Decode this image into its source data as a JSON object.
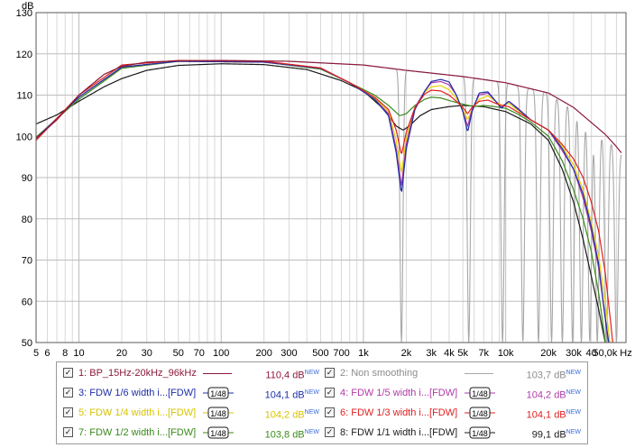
{
  "chart_data": {
    "type": "line",
    "title": "",
    "ylabel": "dB",
    "xlabel": "",
    "x_scale": "log",
    "xlim": [
      5,
      70000
    ],
    "ylim": [
      50,
      130
    ],
    "y_ticks": [
      50,
      60,
      70,
      80,
      90,
      100,
      110,
      120,
      130
    ],
    "x_ticks": [
      {
        "v": 5,
        "l": "5"
      },
      {
        "v": 6,
        "l": "6"
      },
      {
        "v": 8,
        "l": "8"
      },
      {
        "v": 10,
        "l": "10"
      },
      {
        "v": 20,
        "l": "20"
      },
      {
        "v": 30,
        "l": "30"
      },
      {
        "v": 50,
        "l": "50"
      },
      {
        "v": 70,
        "l": "70"
      },
      {
        "v": 100,
        "l": "100"
      },
      {
        "v": 200,
        "l": "200"
      },
      {
        "v": 300,
        "l": "300"
      },
      {
        "v": 500,
        "l": "500"
      },
      {
        "v": 700,
        "l": "700"
      },
      {
        "v": 1000,
        "l": "1k"
      },
      {
        "v": 2000,
        "l": "2k"
      },
      {
        "v": 3000,
        "l": "3k"
      },
      {
        "v": 4000,
        "l": "4k"
      },
      {
        "v": 5000,
        "l": "5k"
      },
      {
        "v": 7000,
        "l": "7k"
      },
      {
        "v": 10000,
        "l": "10k"
      },
      {
        "v": 20000,
        "l": "20k"
      },
      {
        "v": 30000,
        "l": "30k"
      },
      {
        "v": 40000,
        "l": "40"
      },
      {
        "v": 50000,
        "l": "50,0k"
      },
      {
        "v": 70000,
        "l": "Hz"
      }
    ],
    "grid": true,
    "legend_position": "bottom",
    "series": [
      {
        "id": 2,
        "name": "Non smoothing",
        "color": "#a8a8a8",
        "mode": "comb",
        "env": "s1",
        "nulls": [
          [
            1850,
            50
          ],
          [
            5500,
            50
          ],
          [
            9500,
            50
          ],
          [
            13200,
            50
          ],
          [
            17000,
            50
          ],
          [
            21000,
            50
          ],
          [
            25000,
            50
          ],
          [
            29500,
            50
          ],
          [
            34000,
            50
          ],
          [
            39000,
            50
          ],
          [
            44000,
            50
          ],
          [
            51000,
            50
          ],
          [
            60000,
            50
          ]
        ]
      },
      {
        "id": 1,
        "name": "BP_15Hz-20kHz_96kHz",
        "color": "#8b1a3b",
        "points": [
          [
            5,
            99.5
          ],
          [
            7,
            104
          ],
          [
            10,
            110
          ],
          [
            15,
            115
          ],
          [
            20,
            117
          ],
          [
            30,
            118
          ],
          [
            50,
            118.3
          ],
          [
            100,
            118.4
          ],
          [
            300,
            118.2
          ],
          [
            1000,
            117.3
          ],
          [
            2000,
            116
          ],
          [
            5000,
            114.5
          ],
          [
            10000,
            113
          ],
          [
            20000,
            110.5
          ],
          [
            30000,
            107
          ],
          [
            50000,
            100.5
          ],
          [
            60000,
            97.5
          ],
          [
            65000,
            96
          ]
        ]
      },
      {
        "id": 3,
        "name": "FDW 1/6 width i...[FDW]",
        "color": "#1e2ea8",
        "points": [
          [
            5,
            99.5
          ],
          [
            10,
            109.5
          ],
          [
            20,
            116.8
          ],
          [
            50,
            118.2
          ],
          [
            200,
            118
          ],
          [
            500,
            116.5
          ],
          [
            800,
            113
          ],
          [
            1200,
            109
          ],
          [
            1500,
            105
          ],
          [
            1700,
            96
          ],
          [
            1850,
            86
          ],
          [
            2000,
            97
          ],
          [
            2300,
            106.5
          ],
          [
            2700,
            111
          ],
          [
            3000,
            113.3
          ],
          [
            3500,
            113.8
          ],
          [
            4000,
            113.2
          ],
          [
            4500,
            110
          ],
          [
            5000,
            106
          ],
          [
            5400,
            101
          ],
          [
            5800,
            106
          ],
          [
            6500,
            110.5
          ],
          [
            7500,
            110.8
          ],
          [
            8500,
            108.5
          ],
          [
            9300,
            106.8
          ],
          [
            10500,
            108.5
          ],
          [
            12000,
            106.8
          ],
          [
            15000,
            104
          ],
          [
            20000,
            101.5
          ],
          [
            25000,
            97
          ],
          [
            30000,
            92
          ],
          [
            35000,
            86
          ],
          [
            40000,
            78
          ],
          [
            45000,
            69
          ],
          [
            50000,
            56
          ],
          [
            53000,
            50
          ]
        ]
      },
      {
        "id": 4,
        "name": "FDW 1/5 width i...[FDW]",
        "color": "#b03aa8",
        "points": [
          [
            5,
            99.5
          ],
          [
            10,
            109.5
          ],
          [
            20,
            116.8
          ],
          [
            50,
            118.2
          ],
          [
            200,
            118
          ],
          [
            500,
            116.5
          ],
          [
            800,
            113
          ],
          [
            1200,
            109
          ],
          [
            1500,
            105.5
          ],
          [
            1700,
            97
          ],
          [
            1850,
            88
          ],
          [
            2000,
            98
          ],
          [
            2300,
            107
          ],
          [
            2700,
            111
          ],
          [
            3000,
            113
          ],
          [
            3500,
            113.3
          ],
          [
            4000,
            112.5
          ],
          [
            4500,
            110
          ],
          [
            5000,
            106
          ],
          [
            5400,
            102.5
          ],
          [
            5800,
            106.5
          ],
          [
            6500,
            110
          ],
          [
            7500,
            110.5
          ],
          [
            8500,
            108.5
          ],
          [
            9300,
            107
          ],
          [
            10500,
            108.5
          ],
          [
            12000,
            107
          ],
          [
            15000,
            104
          ],
          [
            20000,
            101.5
          ],
          [
            25000,
            96.5
          ],
          [
            30000,
            92
          ],
          [
            35000,
            85
          ],
          [
            40000,
            77
          ],
          [
            45000,
            68
          ],
          [
            50000,
            56
          ],
          [
            52500,
            50
          ]
        ]
      },
      {
        "id": 5,
        "name": "FDW 1/4 width i...[FDW]",
        "color": "#e4d000",
        "points": [
          [
            5,
            99.5
          ],
          [
            10,
            109.5
          ],
          [
            20,
            116.8
          ],
          [
            50,
            118.2
          ],
          [
            200,
            118
          ],
          [
            500,
            116.5
          ],
          [
            800,
            113
          ],
          [
            1200,
            109.2
          ],
          [
            1500,
            106
          ],
          [
            1700,
            99
          ],
          [
            1850,
            91
          ],
          [
            2000,
            99.5
          ],
          [
            2300,
            107
          ],
          [
            2700,
            110.8
          ],
          [
            3000,
            112
          ],
          [
            3500,
            112.3
          ],
          [
            4000,
            111.3
          ],
          [
            4500,
            109.2
          ],
          [
            5000,
            106.5
          ],
          [
            5400,
            104
          ],
          [
            5800,
            106.5
          ],
          [
            6500,
            109
          ],
          [
            7500,
            109.8
          ],
          [
            8500,
            108.5
          ],
          [
            9300,
            107.5
          ],
          [
            10500,
            108
          ],
          [
            12000,
            106.5
          ],
          [
            15000,
            104
          ],
          [
            20000,
            101.5
          ],
          [
            25000,
            97.5
          ],
          [
            30000,
            93
          ],
          [
            35000,
            87
          ],
          [
            40000,
            79
          ],
          [
            45000,
            71
          ],
          [
            50000,
            60
          ],
          [
            54000,
            50
          ]
        ]
      },
      {
        "id": 6,
        "name": "FDW 1/3 width i...[FDW]",
        "color": "#e01e1e",
        "points": [
          [
            5,
            99
          ],
          [
            10,
            110
          ],
          [
            20,
            117.3
          ],
          [
            50,
            118.4
          ],
          [
            200,
            118.2
          ],
          [
            500,
            116.6
          ],
          [
            800,
            113
          ],
          [
            1200,
            109.5
          ],
          [
            1500,
            106.5
          ],
          [
            1700,
            101.5
          ],
          [
            1850,
            95.5
          ],
          [
            2000,
            101
          ],
          [
            2300,
            107
          ],
          [
            2700,
            110.3
          ],
          [
            3000,
            111.2
          ],
          [
            3500,
            111
          ],
          [
            4000,
            110
          ],
          [
            4500,
            108.5
          ],
          [
            5000,
            107
          ],
          [
            5400,
            105.5
          ],
          [
            5800,
            107
          ],
          [
            6500,
            108.5
          ],
          [
            7500,
            108.8
          ],
          [
            8500,
            108
          ],
          [
            9300,
            107.5
          ],
          [
            10500,
            107.2
          ],
          [
            12000,
            106
          ],
          [
            15000,
            104
          ],
          [
            20000,
            101.5
          ],
          [
            25000,
            98
          ],
          [
            30000,
            94.5
          ],
          [
            35000,
            90
          ],
          [
            40000,
            84
          ],
          [
            45000,
            77
          ],
          [
            50000,
            67
          ],
          [
            55000,
            54
          ],
          [
            56500,
            50
          ]
        ]
      },
      {
        "id": 7,
        "name": "FDW 1/2 width i...[FDW]",
        "color": "#3a8a1a",
        "points": [
          [
            5,
            99.8
          ],
          [
            10,
            109
          ],
          [
            20,
            116.5
          ],
          [
            50,
            118.2
          ],
          [
            200,
            118
          ],
          [
            500,
            116.3
          ],
          [
            800,
            113
          ],
          [
            1200,
            110
          ],
          [
            1500,
            107.5
          ],
          [
            1800,
            105
          ],
          [
            2000,
            105.5
          ],
          [
            2300,
            107.5
          ],
          [
            2700,
            109
          ],
          [
            3000,
            109.5
          ],
          [
            3500,
            109.3
          ],
          [
            4000,
            108.7
          ],
          [
            5000,
            107.8
          ],
          [
            6000,
            107.2
          ],
          [
            7000,
            107.5
          ],
          [
            8000,
            107.3
          ],
          [
            10000,
            106.8
          ],
          [
            12000,
            105.5
          ],
          [
            15000,
            103.5
          ],
          [
            20000,
            100
          ],
          [
            25000,
            94
          ],
          [
            30000,
            87
          ],
          [
            35000,
            80
          ],
          [
            40000,
            72
          ],
          [
            45000,
            62
          ],
          [
            48000,
            55
          ],
          [
            50000,
            50
          ]
        ]
      },
      {
        "id": 8,
        "name": "FDW 1/1 width i...[FDW]",
        "color": "#1a1a1a",
        "points": [
          [
            5,
            103
          ],
          [
            7,
            105.2
          ],
          [
            10,
            108.5
          ],
          [
            15,
            112
          ],
          [
            20,
            114
          ],
          [
            30,
            116
          ],
          [
            50,
            117.2
          ],
          [
            100,
            117.6
          ],
          [
            200,
            117.4
          ],
          [
            400,
            116.2
          ],
          [
            700,
            113.5
          ],
          [
            1000,
            111
          ],
          [
            1400,
            106.5
          ],
          [
            1700,
            102.5
          ],
          [
            1900,
            101.5
          ],
          [
            2100,
            102.5
          ],
          [
            2500,
            105
          ],
          [
            3000,
            106.5
          ],
          [
            4000,
            107.2
          ],
          [
            5000,
            107.5
          ],
          [
            7000,
            107.2
          ],
          [
            10000,
            106
          ],
          [
            15000,
            103
          ],
          [
            20000,
            99
          ],
          [
            25000,
            92
          ],
          [
            30000,
            84
          ],
          [
            35000,
            75
          ],
          [
            40000,
            66
          ],
          [
            45000,
            58
          ],
          [
            50000,
            50
          ]
        ]
      }
    ]
  },
  "legend": [
    {
      "id": 1,
      "label": "1: BP_15Hz-20kHz_96kHz",
      "value": "110,4 dB",
      "new": "NEW",
      "color": "#8b1a3b",
      "smooth": "",
      "checked": "✓"
    },
    {
      "id": 2,
      "label": "2: Non smoothing",
      "value": "103,7 dB",
      "new": "NEW",
      "color": "#a8a8a8",
      "smooth": "",
      "checked": "✓"
    },
    {
      "id": 3,
      "label": "3: FDW 1/6 width i...[FDW]",
      "value": "104,1 dB",
      "new": "NEW",
      "color": "#1e2ea8",
      "smooth": "1/48",
      "checked": "✓"
    },
    {
      "id": 4,
      "label": "4: FDW 1/5 width i...[FDW]",
      "value": "104,2 dB",
      "new": "NEW",
      "color": "#b03aa8",
      "smooth": "1/48",
      "checked": "✓"
    },
    {
      "id": 5,
      "label": "5: FDW 1/4 width i...[FDW]",
      "value": "104,2 dB",
      "new": "NEW",
      "color": "#d8c400",
      "smooth": "1/48",
      "checked": "✓"
    },
    {
      "id": 6,
      "label": "6: FDW 1/3 width i...[FDW]",
      "value": "104,1 dB",
      "new": "NEW",
      "color": "#e01e1e",
      "smooth": "1/48",
      "checked": "✓"
    },
    {
      "id": 7,
      "label": "7: FDW 1/2 width i...[FDW]",
      "value": "103,8 dB",
      "new": "NEW",
      "color": "#3a8a1a",
      "smooth": "1/48",
      "checked": "✓"
    },
    {
      "id": 8,
      "label": "8: FDW 1/1 width i...[FDW]",
      "value": "99,1 dB",
      "new": "NEW",
      "color": "#1a1a1a",
      "smooth": "1/48",
      "checked": "✓"
    }
  ]
}
